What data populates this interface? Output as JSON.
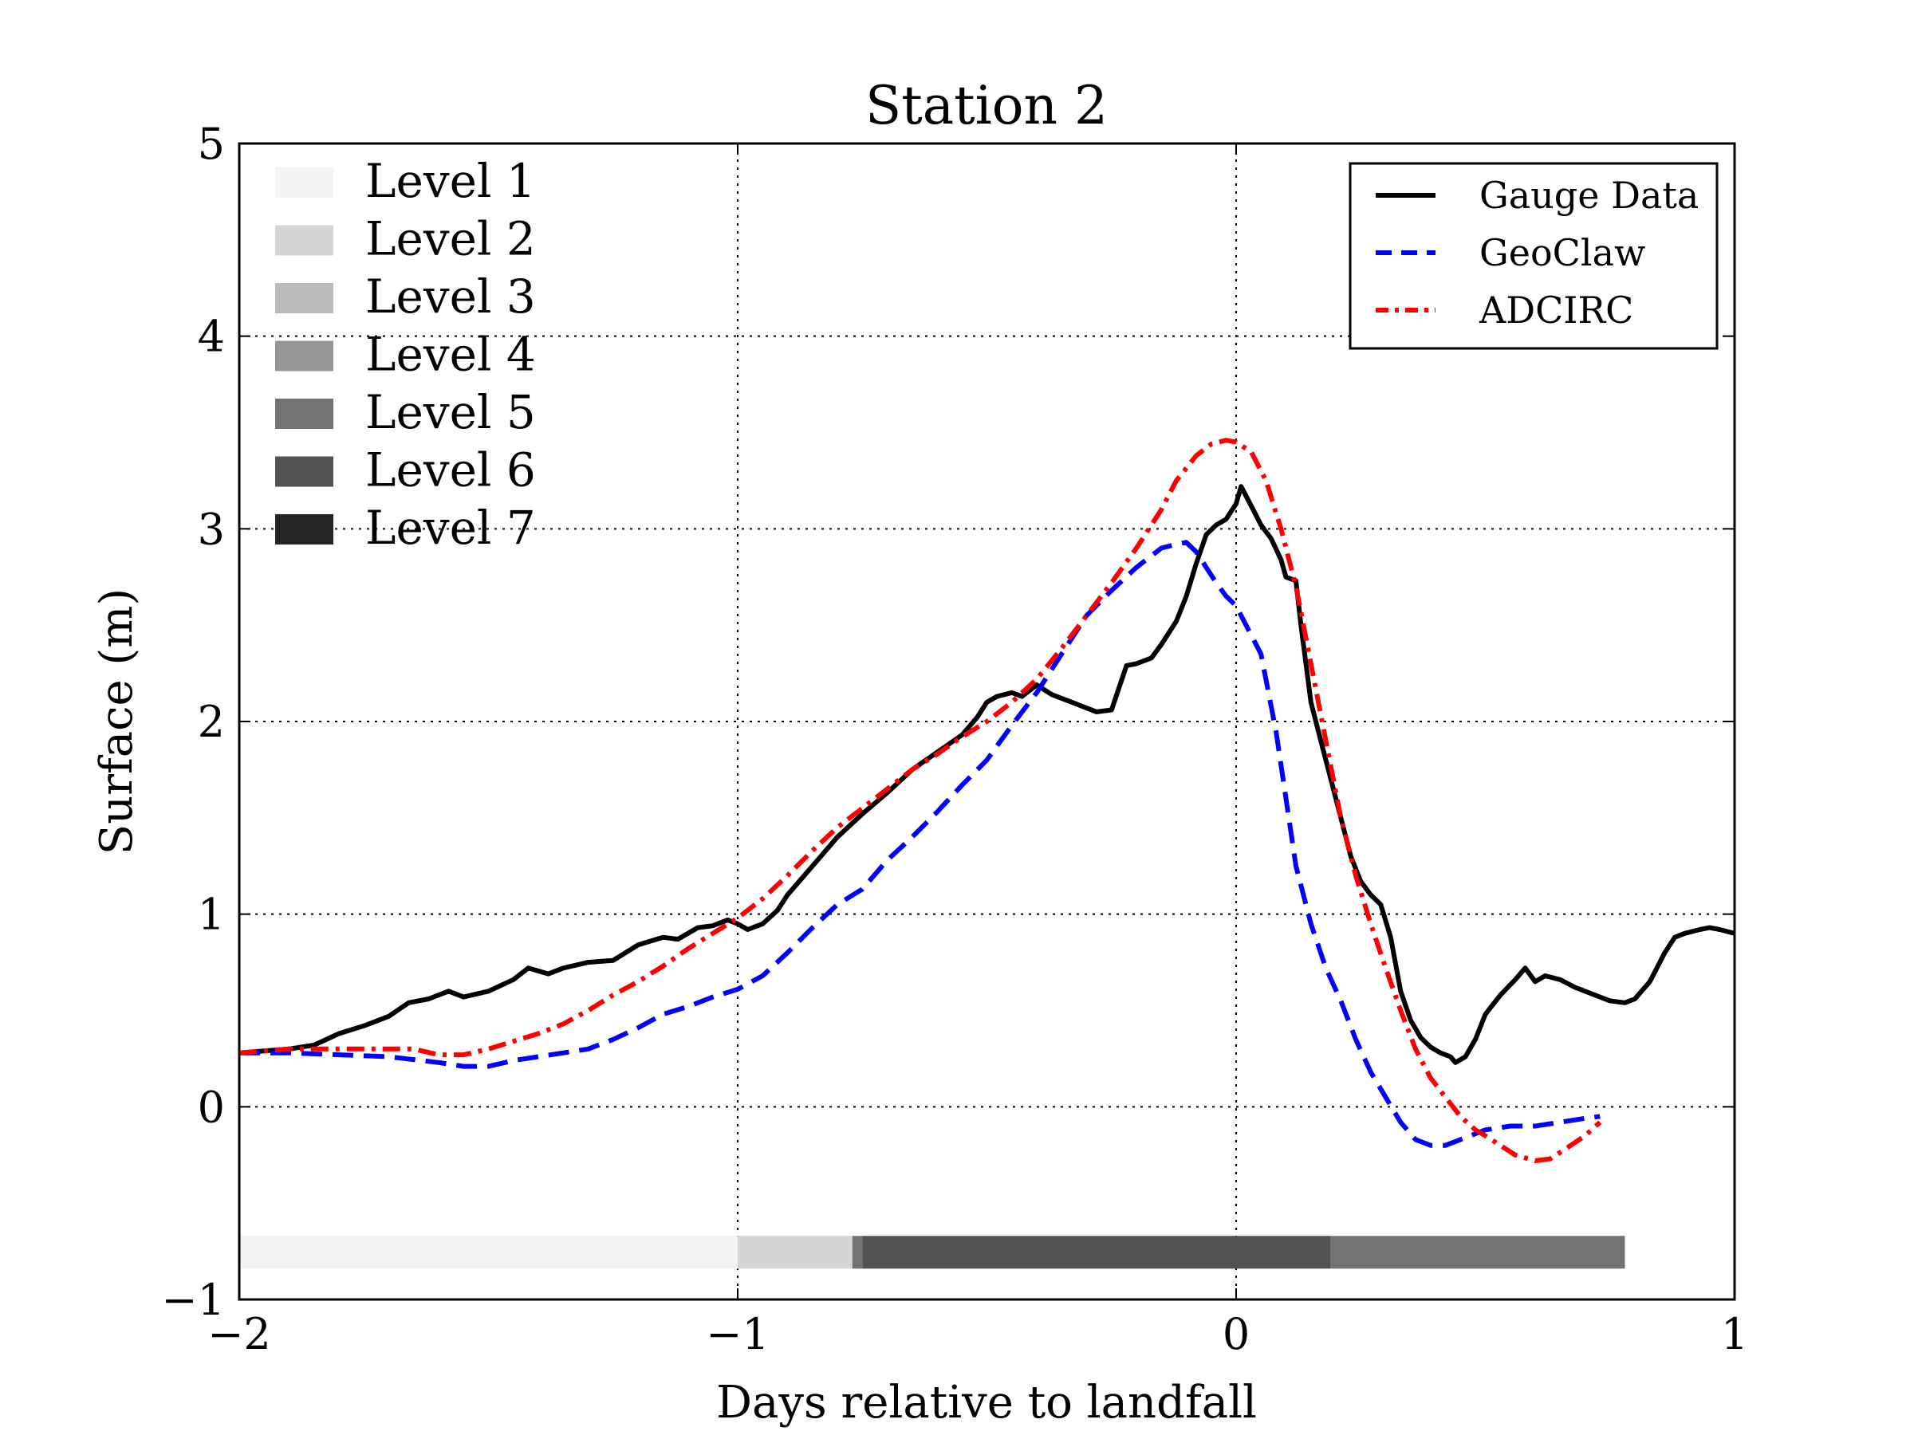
{
  "chart_data": {
    "type": "line",
    "title": "Station 2",
    "xlabel": "Days relative to landfall",
    "ylabel": "Surface (m)",
    "xlim": [
      -2,
      1
    ],
    "ylim": [
      -1,
      5
    ],
    "grid": true,
    "x_ticks": [
      -2,
      -1,
      0,
      1
    ],
    "x_tick_labels": [
      "−2",
      "−1",
      "0",
      "1"
    ],
    "y_ticks": [
      -1,
      0,
      1,
      2,
      3,
      4,
      5
    ],
    "y_tick_labels": [
      "−1",
      "0",
      "1",
      "2",
      "3",
      "4",
      "5"
    ],
    "legend_location": "top-right",
    "series": [
      {
        "name": "Gauge Data",
        "color": "#000000",
        "style": "solid",
        "points": [
          [
            -2.0,
            0.28
          ],
          [
            -1.9,
            0.3
          ],
          [
            -1.85,
            0.32
          ],
          [
            -1.8,
            0.38
          ],
          [
            -1.75,
            0.42
          ],
          [
            -1.7,
            0.47
          ],
          [
            -1.66,
            0.54
          ],
          [
            -1.62,
            0.56
          ],
          [
            -1.58,
            0.6
          ],
          [
            -1.55,
            0.57
          ],
          [
            -1.5,
            0.6
          ],
          [
            -1.45,
            0.66
          ],
          [
            -1.42,
            0.72
          ],
          [
            -1.38,
            0.69
          ],
          [
            -1.35,
            0.72
          ],
          [
            -1.3,
            0.75
          ],
          [
            -1.25,
            0.76
          ],
          [
            -1.2,
            0.84
          ],
          [
            -1.15,
            0.88
          ],
          [
            -1.12,
            0.87
          ],
          [
            -1.08,
            0.93
          ],
          [
            -1.05,
            0.94
          ],
          [
            -1.02,
            0.97
          ],
          [
            -1.0,
            0.95
          ],
          [
            -0.98,
            0.92
          ],
          [
            -0.95,
            0.95
          ],
          [
            -0.92,
            1.02
          ],
          [
            -0.9,
            1.1
          ],
          [
            -0.85,
            1.25
          ],
          [
            -0.8,
            1.4
          ],
          [
            -0.75,
            1.52
          ],
          [
            -0.7,
            1.63
          ],
          [
            -0.65,
            1.75
          ],
          [
            -0.6,
            1.84
          ],
          [
            -0.55,
            1.93
          ],
          [
            -0.52,
            2.02
          ],
          [
            -0.5,
            2.1
          ],
          [
            -0.48,
            2.13
          ],
          [
            -0.45,
            2.15
          ],
          [
            -0.43,
            2.13
          ],
          [
            -0.4,
            2.19
          ],
          [
            -0.37,
            2.14
          ],
          [
            -0.33,
            2.1
          ],
          [
            -0.3,
            2.07
          ],
          [
            -0.28,
            2.05
          ],
          [
            -0.25,
            2.06
          ],
          [
            -0.22,
            2.29
          ],
          [
            -0.2,
            2.3
          ],
          [
            -0.17,
            2.33
          ],
          [
            -0.15,
            2.4
          ],
          [
            -0.12,
            2.52
          ],
          [
            -0.1,
            2.65
          ],
          [
            -0.08,
            2.82
          ],
          [
            -0.06,
            2.97
          ],
          [
            -0.04,
            3.02
          ],
          [
            -0.02,
            3.05
          ],
          [
            0.0,
            3.13
          ],
          [
            0.01,
            3.22
          ],
          [
            0.03,
            3.12
          ],
          [
            0.05,
            3.02
          ],
          [
            0.07,
            2.95
          ],
          [
            0.09,
            2.84
          ],
          [
            0.1,
            2.75
          ],
          [
            0.12,
            2.73
          ],
          [
            0.13,
            2.5
          ],
          [
            0.15,
            2.1
          ],
          [
            0.17,
            1.9
          ],
          [
            0.19,
            1.7
          ],
          [
            0.21,
            1.5
          ],
          [
            0.23,
            1.3
          ],
          [
            0.25,
            1.17
          ],
          [
            0.27,
            1.1
          ],
          [
            0.29,
            1.05
          ],
          [
            0.31,
            0.88
          ],
          [
            0.33,
            0.6
          ],
          [
            0.35,
            0.45
          ],
          [
            0.37,
            0.36
          ],
          [
            0.39,
            0.31
          ],
          [
            0.41,
            0.28
          ],
          [
            0.43,
            0.26
          ],
          [
            0.44,
            0.23
          ],
          [
            0.46,
            0.26
          ],
          [
            0.48,
            0.35
          ],
          [
            0.5,
            0.48
          ],
          [
            0.53,
            0.58
          ],
          [
            0.56,
            0.66
          ],
          [
            0.58,
            0.72
          ],
          [
            0.6,
            0.65
          ],
          [
            0.62,
            0.68
          ],
          [
            0.65,
            0.66
          ],
          [
            0.68,
            0.62
          ],
          [
            0.72,
            0.58
          ],
          [
            0.75,
            0.55
          ],
          [
            0.78,
            0.54
          ],
          [
            0.8,
            0.56
          ],
          [
            0.83,
            0.65
          ],
          [
            0.86,
            0.8
          ],
          [
            0.88,
            0.88
          ],
          [
            0.9,
            0.9
          ],
          [
            0.93,
            0.92
          ],
          [
            0.95,
            0.93
          ],
          [
            0.97,
            0.92
          ],
          [
            1.0,
            0.9
          ]
        ]
      },
      {
        "name": "GeoClaw",
        "color": "#0000ff",
        "style": "dashed",
        "points": [
          [
            -2.0,
            0.28
          ],
          [
            -1.9,
            0.28
          ],
          [
            -1.8,
            0.27
          ],
          [
            -1.7,
            0.26
          ],
          [
            -1.6,
            0.23
          ],
          [
            -1.55,
            0.21
          ],
          [
            -1.5,
            0.21
          ],
          [
            -1.45,
            0.24
          ],
          [
            -1.4,
            0.26
          ],
          [
            -1.3,
            0.3
          ],
          [
            -1.25,
            0.35
          ],
          [
            -1.2,
            0.41
          ],
          [
            -1.15,
            0.48
          ],
          [
            -1.1,
            0.52
          ],
          [
            -1.05,
            0.57
          ],
          [
            -1.0,
            0.61
          ],
          [
            -0.95,
            0.68
          ],
          [
            -0.9,
            0.8
          ],
          [
            -0.85,
            0.93
          ],
          [
            -0.8,
            1.05
          ],
          [
            -0.75,
            1.13
          ],
          [
            -0.7,
            1.28
          ],
          [
            -0.65,
            1.4
          ],
          [
            -0.6,
            1.53
          ],
          [
            -0.55,
            1.67
          ],
          [
            -0.5,
            1.8
          ],
          [
            -0.45,
            1.98
          ],
          [
            -0.4,
            2.15
          ],
          [
            -0.35,
            2.35
          ],
          [
            -0.3,
            2.55
          ],
          [
            -0.25,
            2.68
          ],
          [
            -0.2,
            2.8
          ],
          [
            -0.15,
            2.9
          ],
          [
            -0.12,
            2.92
          ],
          [
            -0.1,
            2.93
          ],
          [
            -0.08,
            2.88
          ],
          [
            -0.06,
            2.8
          ],
          [
            -0.04,
            2.72
          ],
          [
            -0.02,
            2.65
          ],
          [
            0.0,
            2.6
          ],
          [
            0.02,
            2.5
          ],
          [
            0.05,
            2.35
          ],
          [
            0.08,
            1.95
          ],
          [
            0.1,
            1.6
          ],
          [
            0.12,
            1.25
          ],
          [
            0.15,
            0.95
          ],
          [
            0.18,
            0.72
          ],
          [
            0.21,
            0.55
          ],
          [
            0.24,
            0.35
          ],
          [
            0.27,
            0.18
          ],
          [
            0.3,
            0.05
          ],
          [
            0.33,
            -0.08
          ],
          [
            0.36,
            -0.17
          ],
          [
            0.39,
            -0.2
          ],
          [
            0.42,
            -0.2
          ],
          [
            0.45,
            -0.17
          ],
          [
            0.5,
            -0.12
          ],
          [
            0.55,
            -0.1
          ],
          [
            0.6,
            -0.1
          ],
          [
            0.65,
            -0.08
          ],
          [
            0.7,
            -0.06
          ],
          [
            0.73,
            -0.05
          ]
        ]
      },
      {
        "name": "ADCIRC",
        "color": "#ff0000",
        "style": "dash-dot",
        "points": [
          [
            -2.0,
            0.28
          ],
          [
            -1.9,
            0.3
          ],
          [
            -1.8,
            0.3
          ],
          [
            -1.7,
            0.3
          ],
          [
            -1.65,
            0.3
          ],
          [
            -1.6,
            0.27
          ],
          [
            -1.55,
            0.27
          ],
          [
            -1.5,
            0.3
          ],
          [
            -1.45,
            0.34
          ],
          [
            -1.4,
            0.38
          ],
          [
            -1.35,
            0.43
          ],
          [
            -1.3,
            0.5
          ],
          [
            -1.25,
            0.58
          ],
          [
            -1.2,
            0.65
          ],
          [
            -1.15,
            0.73
          ],
          [
            -1.1,
            0.82
          ],
          [
            -1.05,
            0.9
          ],
          [
            -1.0,
            0.98
          ],
          [
            -0.95,
            1.08
          ],
          [
            -0.9,
            1.2
          ],
          [
            -0.85,
            1.33
          ],
          [
            -0.8,
            1.45
          ],
          [
            -0.75,
            1.55
          ],
          [
            -0.7,
            1.65
          ],
          [
            -0.65,
            1.75
          ],
          [
            -0.6,
            1.83
          ],
          [
            -0.55,
            1.92
          ],
          [
            -0.5,
            2.0
          ],
          [
            -0.45,
            2.1
          ],
          [
            -0.4,
            2.22
          ],
          [
            -0.35,
            2.38
          ],
          [
            -0.3,
            2.55
          ],
          [
            -0.25,
            2.72
          ],
          [
            -0.2,
            2.9
          ],
          [
            -0.15,
            3.1
          ],
          [
            -0.12,
            3.25
          ],
          [
            -0.08,
            3.38
          ],
          [
            -0.05,
            3.44
          ],
          [
            -0.02,
            3.46
          ],
          [
            0.0,
            3.45
          ],
          [
            0.03,
            3.4
          ],
          [
            0.06,
            3.25
          ],
          [
            0.09,
            3.0
          ],
          [
            0.12,
            2.7
          ],
          [
            0.15,
            2.3
          ],
          [
            0.18,
            1.9
          ],
          [
            0.21,
            1.5
          ],
          [
            0.24,
            1.2
          ],
          [
            0.27,
            0.95
          ],
          [
            0.3,
            0.72
          ],
          [
            0.33,
            0.5
          ],
          [
            0.36,
            0.3
          ],
          [
            0.39,
            0.15
          ],
          [
            0.42,
            0.05
          ],
          [
            0.45,
            -0.05
          ],
          [
            0.48,
            -0.12
          ],
          [
            0.5,
            -0.15
          ],
          [
            0.53,
            -0.2
          ],
          [
            0.56,
            -0.25
          ],
          [
            0.6,
            -0.28
          ],
          [
            0.63,
            -0.27
          ],
          [
            0.66,
            -0.22
          ],
          [
            0.7,
            -0.15
          ],
          [
            0.73,
            -0.08
          ]
        ]
      }
    ],
    "refinement_levels": {
      "entries": [
        {
          "label": "Level 1",
          "color": "#f3f3f3"
        },
        {
          "label": "Level 2",
          "color": "#d6d6d6"
        },
        {
          "label": "Level 3",
          "color": "#bababa"
        },
        {
          "label": "Level 4",
          "color": "#969696"
        },
        {
          "label": "Level 5",
          "color": "#737373"
        },
        {
          "label": "Level 6",
          "color": "#525252"
        },
        {
          "label": "Level 7",
          "color": "#252525"
        }
      ],
      "bar_y_range": [
        -0.84,
        -0.67
      ],
      "segments": [
        {
          "start": -2.0,
          "end": -1.0,
          "level": 1
        },
        {
          "start": -1.0,
          "end": -0.77,
          "level": 2
        },
        {
          "start": -0.77,
          "end": -0.75,
          "level": 5
        },
        {
          "start": -0.75,
          "end": 0.19,
          "level": 6
        },
        {
          "start": 0.19,
          "end": 0.78,
          "level": 5
        }
      ]
    }
  }
}
